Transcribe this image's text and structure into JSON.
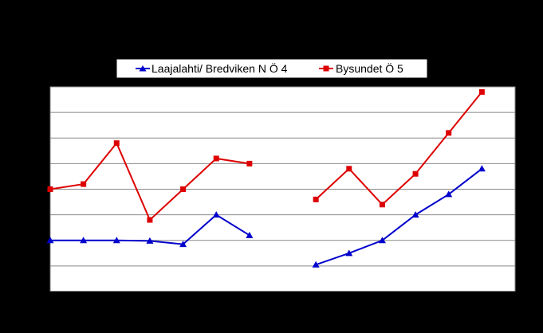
{
  "chart_data": {
    "type": "line",
    "title": "",
    "xlabel": "",
    "ylabel": "",
    "x": [
      0,
      1,
      2,
      3,
      4,
      5,
      6,
      7,
      8,
      9,
      10,
      11,
      12,
      13
    ],
    "ylim": [
      0,
      8
    ],
    "yticks": [
      0,
      1,
      2,
      3,
      4,
      5,
      6,
      7,
      8
    ],
    "grid": true,
    "legend_position": "top",
    "series": [
      {
        "name": "Laajalahti/ Bredviken N Ö 4",
        "color": "#0000CC",
        "marker": "triangle",
        "values": [
          2.0,
          2.0,
          2.0,
          1.98,
          1.85,
          3.0,
          2.2,
          null,
          1.05,
          1.5,
          2.0,
          3.0,
          3.8,
          4.8
        ]
      },
      {
        "name": "Bysundet Ö 5",
        "color": "#DD0000",
        "marker": "square",
        "values": [
          4.0,
          4.2,
          5.8,
          2.8,
          4.0,
          5.2,
          5.0,
          null,
          3.6,
          4.8,
          3.4,
          4.6,
          6.2,
          7.8
        ]
      }
    ]
  }
}
